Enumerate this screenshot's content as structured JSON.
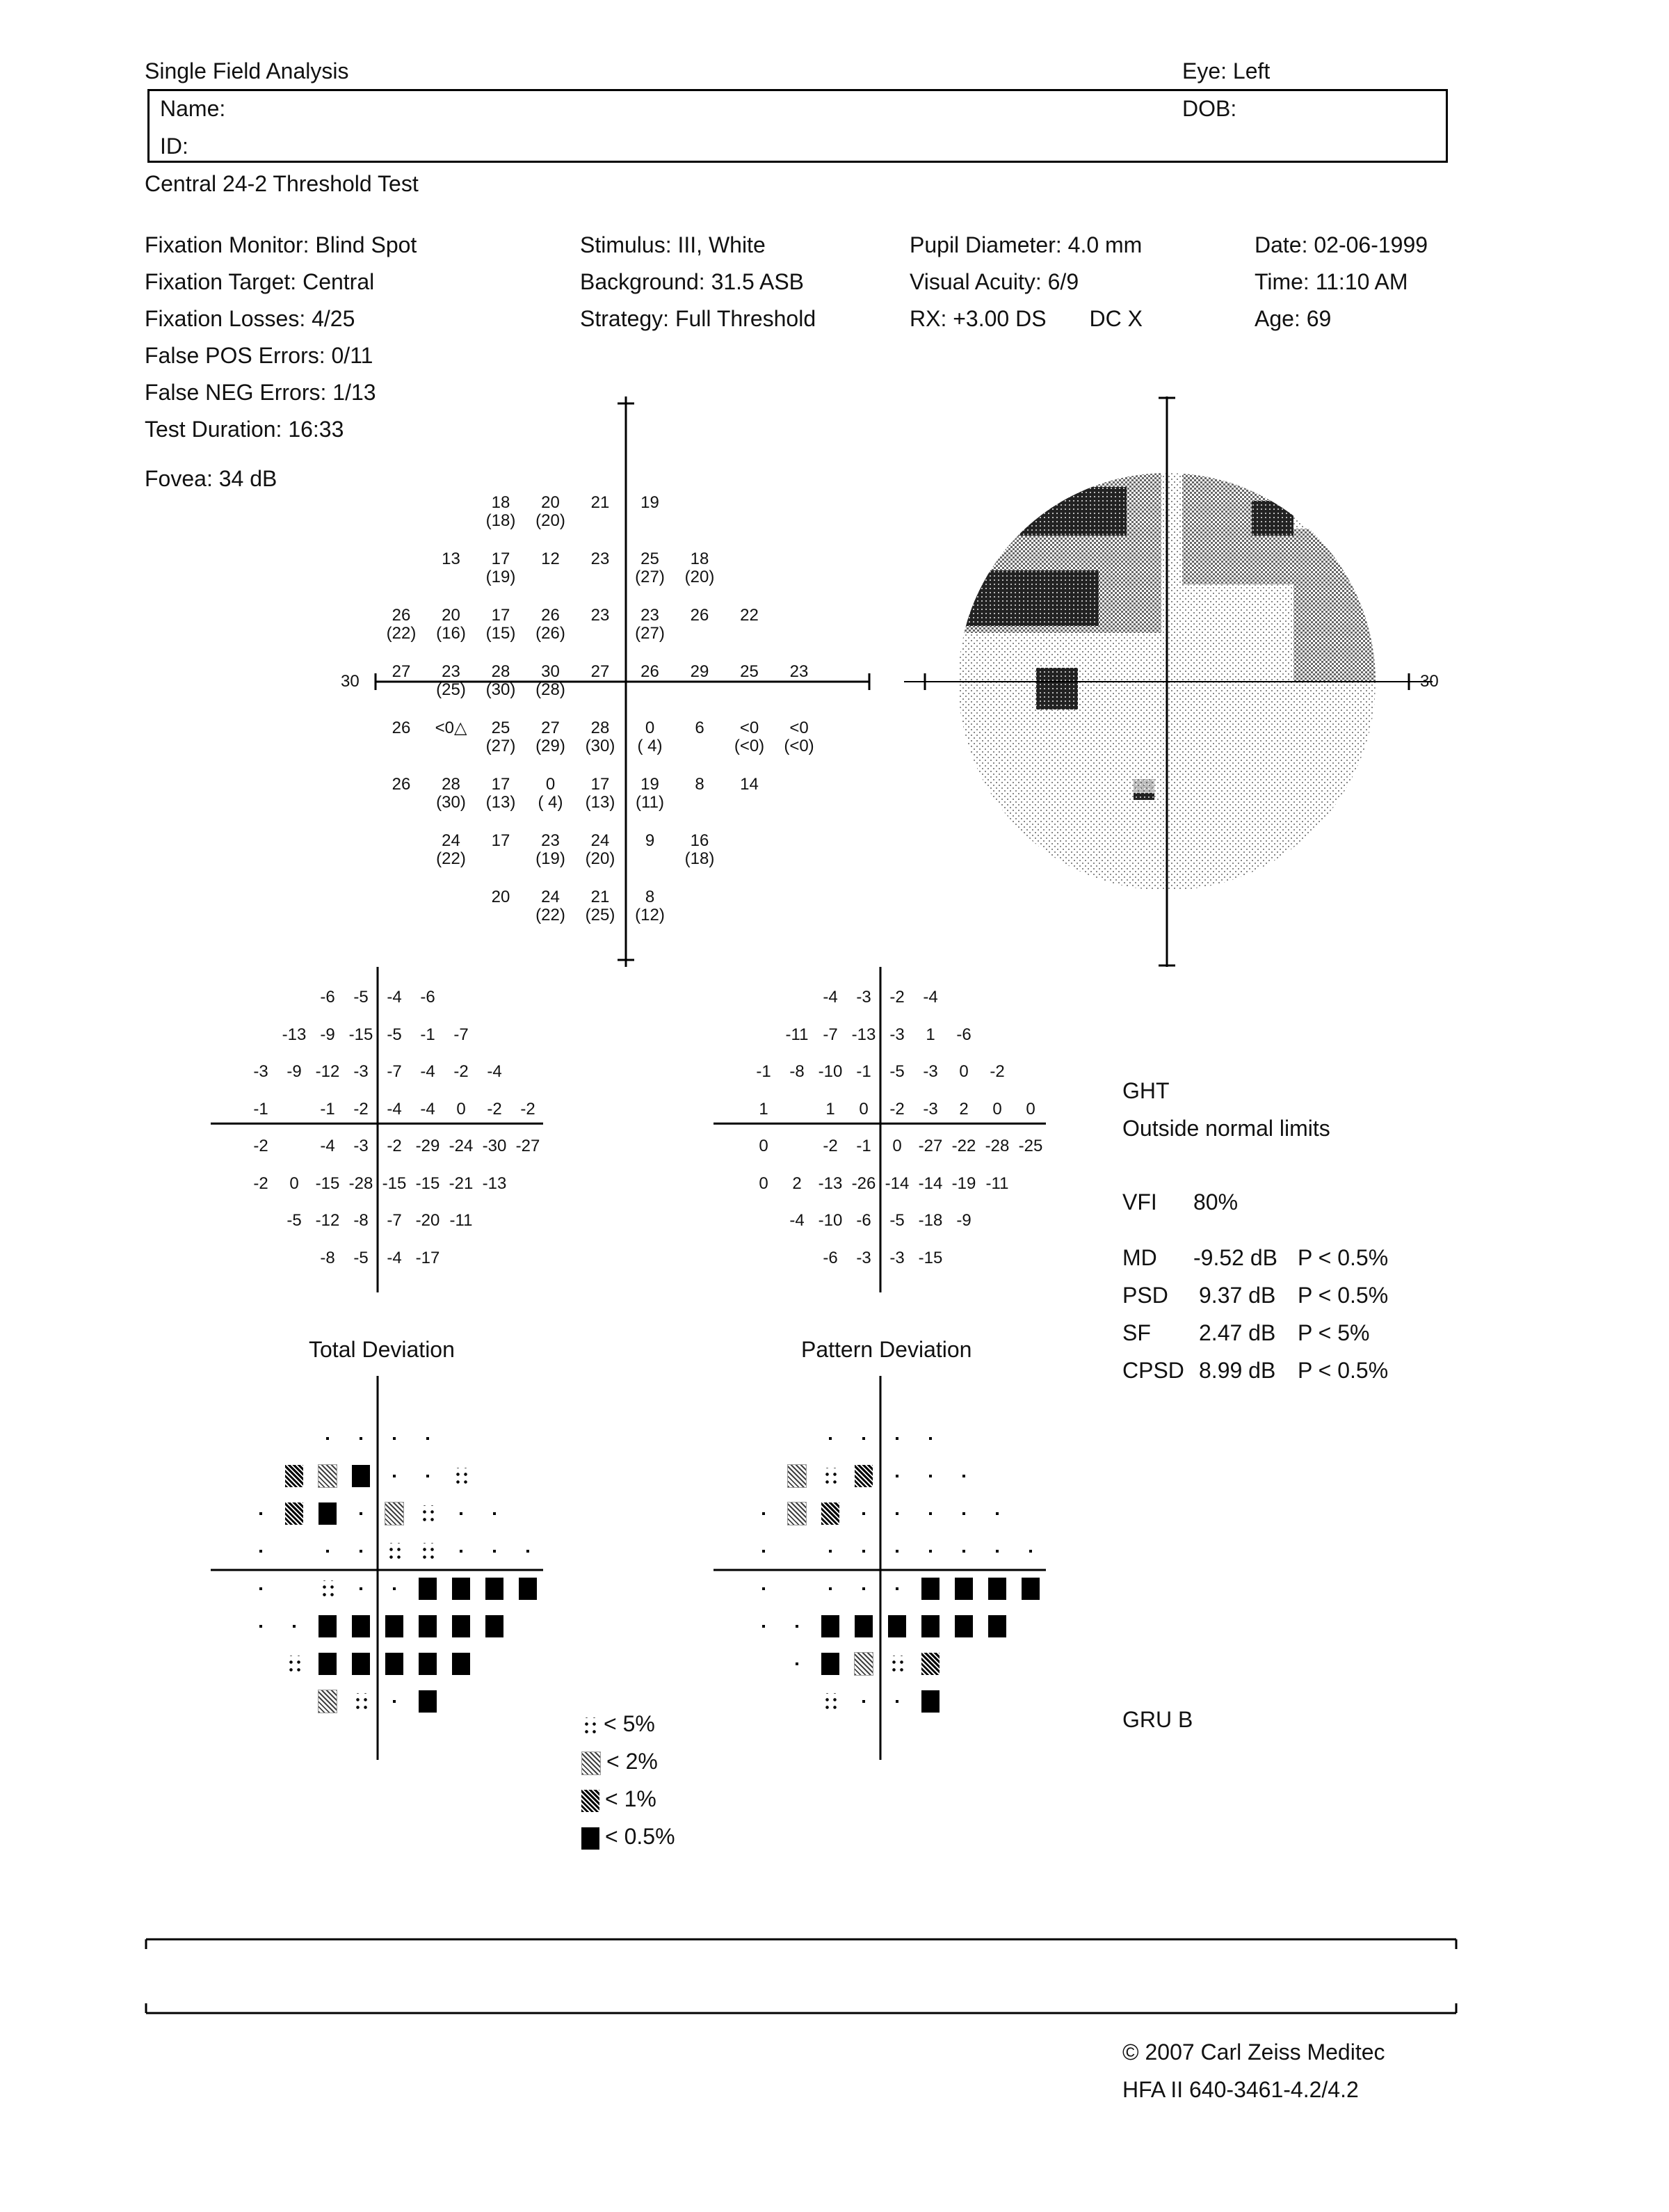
{
  "header": {
    "title": "Single Field Analysis",
    "eye": "Eye: Left",
    "name_label": "Name:",
    "dob_label": "DOB:",
    "id_label": "ID:",
    "test_name": "Central 24-2 Threshold Test"
  },
  "params": {
    "col1": [
      "Fixation Monitor: Blind Spot",
      "Fixation Target: Central",
      "Fixation Losses: 4/25",
      "False POS Errors: 0/11",
      "False NEG Errors: 1/13",
      "Test Duration: 16:33"
    ],
    "col2": [
      "Stimulus: III, White",
      "Background: 31.5 ASB",
      "Strategy: Full Threshold"
    ],
    "col3": [
      "Pupil Diameter: 4.0 mm",
      "Visual Acuity: 6/9",
      "RX: +3.00 DS",
      "DC  X"
    ],
    "col4": [
      "Date: 02-06-1999",
      "Time: 11:10 AM",
      "Age: 69"
    ],
    "fovea": "Fovea: 34 dB"
  },
  "threshold": {
    "axis_label_left": "30",
    "axis_label_right": "30",
    "points": [
      {
        "c": 4,
        "r": 0,
        "v": "18",
        "p": "(18)"
      },
      {
        "c": 5,
        "r": 0,
        "v": "20",
        "p": "(20)"
      },
      {
        "c": 6,
        "r": 0,
        "v": "21",
        "p": ""
      },
      {
        "c": 7,
        "r": 0,
        "v": "19",
        "p": ""
      },
      {
        "c": 3,
        "r": 1,
        "v": "13",
        "p": ""
      },
      {
        "c": 4,
        "r": 1,
        "v": "17",
        "p": "(19)"
      },
      {
        "c": 5,
        "r": 1,
        "v": "12",
        "p": ""
      },
      {
        "c": 6,
        "r": 1,
        "v": "23",
        "p": ""
      },
      {
        "c": 7,
        "r": 1,
        "v": "25",
        "p": "(27)"
      },
      {
        "c": 8,
        "r": 1,
        "v": "18",
        "p": "(20)"
      },
      {
        "c": 2,
        "r": 2,
        "v": "26",
        "p": "(22)"
      },
      {
        "c": 3,
        "r": 2,
        "v": "20",
        "p": "(16)"
      },
      {
        "c": 4,
        "r": 2,
        "v": "17",
        "p": "(15)"
      },
      {
        "c": 5,
        "r": 2,
        "v": "26",
        "p": "(26)"
      },
      {
        "c": 6,
        "r": 2,
        "v": "23",
        "p": ""
      },
      {
        "c": 7,
        "r": 2,
        "v": "23",
        "p": "(27)"
      },
      {
        "c": 8,
        "r": 2,
        "v": "26",
        "p": ""
      },
      {
        "c": 9,
        "r": 2,
        "v": "22",
        "p": ""
      },
      {
        "c": 2,
        "r": 3,
        "v": "27",
        "p": ""
      },
      {
        "c": 3,
        "r": 3,
        "v": "23",
        "p": "(25)"
      },
      {
        "c": 4,
        "r": 3,
        "v": "28",
        "p": "(30)"
      },
      {
        "c": 5,
        "r": 3,
        "v": "30",
        "p": "(28)"
      },
      {
        "c": 6,
        "r": 3,
        "v": "27",
        "p": ""
      },
      {
        "c": 7,
        "r": 3,
        "v": "26",
        "p": ""
      },
      {
        "c": 8,
        "r": 3,
        "v": "29",
        "p": ""
      },
      {
        "c": 9,
        "r": 3,
        "v": "25",
        "p": ""
      },
      {
        "c": 10,
        "r": 3,
        "v": "23",
        "p": ""
      },
      {
        "c": 2,
        "r": 4,
        "v": "26",
        "p": ""
      },
      {
        "c": 3,
        "r": 4,
        "v": "<0△",
        "p": ""
      },
      {
        "c": 4,
        "r": 4,
        "v": "25",
        "p": "(27)"
      },
      {
        "c": 5,
        "r": 4,
        "v": "27",
        "p": "(29)"
      },
      {
        "c": 6,
        "r": 4,
        "v": "28",
        "p": "(30)"
      },
      {
        "c": 7,
        "r": 4,
        "v": "0",
        "p": "( 4)"
      },
      {
        "c": 8,
        "r": 4,
        "v": "6",
        "p": ""
      },
      {
        "c": 9,
        "r": 4,
        "v": "<0",
        "p": "(<0)"
      },
      {
        "c": 10,
        "r": 4,
        "v": "<0",
        "p": "(<0)"
      },
      {
        "c": 2,
        "r": 5,
        "v": "26",
        "p": ""
      },
      {
        "c": 3,
        "r": 5,
        "v": "28",
        "p": "(30)"
      },
      {
        "c": 4,
        "r": 5,
        "v": "17",
        "p": "(13)"
      },
      {
        "c": 5,
        "r": 5,
        "v": "0",
        "p": "( 4)"
      },
      {
        "c": 6,
        "r": 5,
        "v": "17",
        "p": "(13)"
      },
      {
        "c": 7,
        "r": 5,
        "v": "19",
        "p": "(11)"
      },
      {
        "c": 8,
        "r": 5,
        "v": "8",
        "p": ""
      },
      {
        "c": 9,
        "r": 5,
        "v": "14",
        "p": ""
      },
      {
        "c": 3,
        "r": 6,
        "v": "24",
        "p": "(22)"
      },
      {
        "c": 4,
        "r": 6,
        "v": "17",
        "p": ""
      },
      {
        "c": 5,
        "r": 6,
        "v": "23",
        "p": "(19)"
      },
      {
        "c": 6,
        "r": 6,
        "v": "24",
        "p": "(20)"
      },
      {
        "c": 7,
        "r": 6,
        "v": "9",
        "p": ""
      },
      {
        "c": 8,
        "r": 6,
        "v": "16",
        "p": "(18)"
      },
      {
        "c": 4,
        "r": 7,
        "v": "20",
        "p": ""
      },
      {
        "c": 5,
        "r": 7,
        "v": "24",
        "p": "(22)"
      },
      {
        "c": 6,
        "r": 7,
        "v": "21",
        "p": "(25)"
      },
      {
        "c": 7,
        "r": 7,
        "v": "8",
        "p": "(12)"
      }
    ]
  },
  "total_deviation": {
    "label": "Total Deviation",
    "rows": [
      [
        "",
        "",
        "",
        "-6",
        "-5",
        "-4",
        "-6",
        "",
        ""
      ],
      [
        "",
        "",
        "-13",
        "-9",
        "-15",
        "-5",
        "-1",
        "-7",
        ""
      ],
      [
        "",
        "-3",
        "-9",
        "-12",
        "-3",
        "-7",
        "-4",
        "-2",
        "-4"
      ],
      [
        "",
        "-1",
        "",
        "-1",
        "-2",
        "-4",
        "-4",
        "0",
        "-2",
        "-2"
      ],
      [
        "",
        "-2",
        "",
        "-4",
        "-3",
        "-2",
        "-29",
        "-24",
        "-30",
        "-27"
      ],
      [
        "",
        "-2",
        "0",
        "-15",
        "-28",
        "-15",
        "-15",
        "-21",
        "-13"
      ],
      [
        "",
        "",
        "-5",
        "-12",
        "-8",
        "-7",
        "-20",
        "-11",
        ""
      ],
      [
        "",
        "",
        "",
        "-8",
        "-5",
        "-4",
        "-17",
        "",
        ""
      ]
    ]
  },
  "pattern_deviation": {
    "label": "Pattern Deviation",
    "rows": [
      [
        "",
        "",
        "",
        "-4",
        "-3",
        "-2",
        "-4",
        "",
        ""
      ],
      [
        "",
        "",
        "-11",
        "-7",
        "-13",
        "-3",
        "1",
        "-6",
        ""
      ],
      [
        "",
        "-1",
        "-8",
        "-10",
        "-1",
        "-5",
        "-3",
        "0",
        "-2"
      ],
      [
        "",
        "1",
        "",
        "1",
        "0",
        "-2",
        "-3",
        "2",
        "0",
        "0"
      ],
      [
        "",
        "0",
        "",
        "-2",
        "-1",
        "0",
        "-27",
        "-22",
        "-28",
        "-25"
      ],
      [
        "",
        "0",
        "2",
        "-13",
        "-26",
        "-14",
        "-14",
        "-19",
        "-11"
      ],
      [
        "",
        "",
        "-4",
        "-10",
        "-6",
        "-5",
        "-18",
        "-9",
        ""
      ],
      [
        "",
        "",
        "",
        "-6",
        "-3",
        "-3",
        "-15",
        "",
        ""
      ]
    ]
  },
  "total_prob": [
    [
      "",
      "",
      "",
      "0",
      "0",
      "0",
      "0",
      "",
      ""
    ],
    [
      "",
      "",
      "1",
      "2",
      "05",
      "0",
      "0",
      "5",
      ""
    ],
    [
      "",
      "0",
      "1",
      "05",
      "0",
      "2",
      "5",
      "0",
      "0"
    ],
    [
      "",
      "0",
      "",
      "0",
      "0",
      "5",
      "5",
      "0",
      "0",
      "0"
    ],
    [
      "",
      "0",
      "",
      "5",
      "0",
      "0",
      "05",
      "05",
      "05",
      "05"
    ],
    [
      "",
      "0",
      "0",
      "05",
      "05",
      "05",
      "05",
      "05",
      "05"
    ],
    [
      "",
      "",
      "5",
      "05",
      "05",
      "05",
      "05",
      "05",
      ""
    ],
    [
      "",
      "",
      "",
      "2",
      "5",
      "0",
      "05",
      "",
      ""
    ]
  ],
  "pattern_prob": [
    [
      "",
      "",
      "",
      "0",
      "0",
      "0",
      "0",
      "",
      ""
    ],
    [
      "",
      "",
      "2",
      "5",
      "1",
      "0",
      "0",
      "0",
      ""
    ],
    [
      "",
      "0",
      "2",
      "1",
      "0",
      "0",
      "0",
      "0",
      "0"
    ],
    [
      "",
      "0",
      "",
      "0",
      "0",
      "0",
      "0",
      "0",
      "0",
      "0"
    ],
    [
      "",
      "0",
      "",
      "0",
      "0",
      "0",
      "05",
      "05",
      "05",
      "05"
    ],
    [
      "",
      "0",
      "0",
      "05",
      "05",
      "05",
      "05",
      "05",
      "05"
    ],
    [
      "",
      "",
      "0",
      "05",
      "2",
      "5",
      "1",
      "",
      ""
    ],
    [
      "",
      "",
      "",
      "5",
      "0",
      "0",
      "05",
      "",
      ""
    ]
  ],
  "legend": [
    "< 5%",
    "< 2%",
    "< 1%",
    "< 0.5%"
  ],
  "stats": {
    "ght_title": "GHT",
    "ght_result": "Outside normal limits",
    "vfi_label": "VFI",
    "vfi_value": "80%",
    "md_label": "MD",
    "md_value": "-9.52 dB",
    "md_p": "P < 0.5%",
    "psd_label": "PSD",
    "psd_value": "9.37 dB",
    "psd_p": "P < 0.5%",
    "sf_label": "SF",
    "sf_value": "2.47 dB",
    "sf_p": "P < 5%",
    "cpsd_label": "CPSD",
    "cpsd_value": "8.99 dB",
    "cpsd_p": "P < 0.5%",
    "gru": "GRU B"
  },
  "graytone_axis_label": "30",
  "footer": {
    "copyright": "© 2007 Carl Zeiss Meditec",
    "model": "HFA II 640-3461-4.2/4.2"
  }
}
